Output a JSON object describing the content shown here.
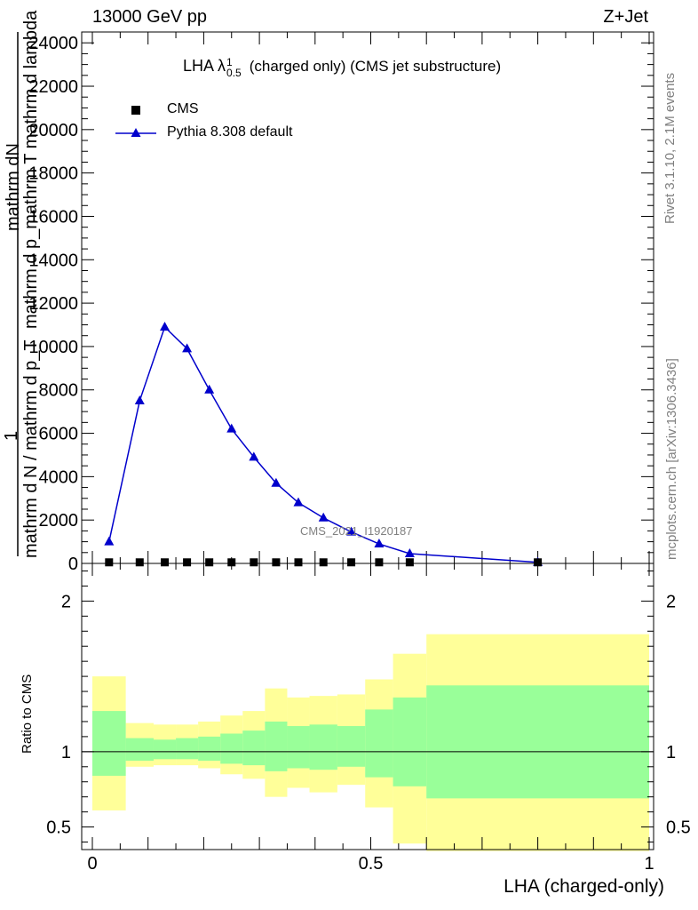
{
  "header": {
    "energy_label": "13000 GeV pp",
    "process_label": "Z+Jet",
    "plot_title": "LHA λ",
    "title_sup": "1",
    "title_sub": "0.5",
    "title_suffix": "(charged only) (CMS jet substructure)",
    "watermark": "CMS_2021_I1920187",
    "side_rivet": "Rivet 3.1.10,  2.1M events",
    "side_mcplots": "mcplots.cern.ch [arXiv:1306.3436]"
  },
  "axes": {
    "y_label_top": "mathrm dN",
    "y_label_mid": "mathrm d p_mathrm T mathrm d lambda",
    "y_label_one": "1",
    "y_label_bot": "mathrm d N / mathrm d p_T",
    "ratio_ylabel": "Ratio to CMS",
    "xlabel": "LHA (charged-only)"
  },
  "legend": {
    "data_label": "CMS",
    "mc_label": "Pythia 8.308 default"
  },
  "colors": {
    "mc_line": "#0000cc",
    "band_inner": "#99ff99",
    "band_outer": "#ffff99",
    "data_marker": "#000000"
  },
  "chart_data": [
    {
      "type": "line",
      "panel": "main",
      "xlim": [
        0,
        1
      ],
      "ylim": [
        0,
        24500
      ],
      "y_ticks": [
        {
          "v": 0,
          "label": "0"
        },
        {
          "v": 2000,
          "label": "2000"
        },
        {
          "v": 4000,
          "label": "4000"
        },
        {
          "v": 6000,
          "label": "6000"
        },
        {
          "v": 8000,
          "label": "8000"
        },
        {
          "v": 10000,
          "label": "10000"
        },
        {
          "v": 12000,
          "label": "12000"
        },
        {
          "v": 14000,
          "label": "14000"
        },
        {
          "v": 16000,
          "label": "16000"
        },
        {
          "v": 18000,
          "label": "18000"
        },
        {
          "v": 20000,
          "label": "20000"
        },
        {
          "v": 22000,
          "label": "22000"
        },
        {
          "v": 24000,
          "label": "24000"
        }
      ],
      "series": [
        {
          "name": "CMS",
          "marker": "square",
          "x": [
            0.03,
            0.085,
            0.13,
            0.17,
            0.21,
            0.25,
            0.29,
            0.33,
            0.37,
            0.415,
            0.465,
            0.515,
            0.57,
            0.8
          ],
          "y": [
            50,
            50,
            50,
            50,
            50,
            50,
            50,
            50,
            50,
            50,
            50,
            50,
            50,
            50
          ]
        },
        {
          "name": "Pythia 8.308 default",
          "marker": "triangle",
          "x": [
            0.03,
            0.085,
            0.13,
            0.17,
            0.21,
            0.25,
            0.29,
            0.33,
            0.37,
            0.415,
            0.465,
            0.515,
            0.57,
            0.8
          ],
          "y": [
            1000,
            7500,
            10900,
            9900,
            8000,
            6200,
            4900,
            3700,
            2800,
            2100,
            1450,
            900,
            450,
            50
          ]
        }
      ]
    },
    {
      "type": "area",
      "panel": "ratio",
      "xlim": [
        0,
        1
      ],
      "ylim": [
        0.35,
        2.25
      ],
      "x_ticks": [
        {
          "v": 0,
          "label": "0"
        },
        {
          "v": 0.5,
          "label": "0.5"
        },
        {
          "v": 1,
          "label": "1"
        }
      ],
      "y_ticks": [
        {
          "v": 0.5,
          "label": "0.5"
        },
        {
          "v": 1,
          "label": "1"
        },
        {
          "v": 2,
          "label": "2"
        }
      ],
      "reference_line": 1.0,
      "bins": [
        {
          "lo": 0.0,
          "hi": 0.06,
          "outer": [
            0.61,
            1.5
          ],
          "inner": [
            0.84,
            1.27
          ]
        },
        {
          "lo": 0.06,
          "hi": 0.11,
          "outer": [
            0.9,
            1.19
          ],
          "inner": [
            0.94,
            1.09
          ]
        },
        {
          "lo": 0.11,
          "hi": 0.15,
          "outer": [
            0.91,
            1.18
          ],
          "inner": [
            0.95,
            1.08
          ]
        },
        {
          "lo": 0.15,
          "hi": 0.19,
          "outer": [
            0.91,
            1.18
          ],
          "inner": [
            0.95,
            1.09
          ]
        },
        {
          "lo": 0.19,
          "hi": 0.23,
          "outer": [
            0.89,
            1.2
          ],
          "inner": [
            0.94,
            1.1
          ]
        },
        {
          "lo": 0.23,
          "hi": 0.27,
          "outer": [
            0.85,
            1.24
          ],
          "inner": [
            0.92,
            1.12
          ]
        },
        {
          "lo": 0.27,
          "hi": 0.31,
          "outer": [
            0.82,
            1.27
          ],
          "inner": [
            0.91,
            1.14
          ]
        },
        {
          "lo": 0.31,
          "hi": 0.35,
          "outer": [
            0.7,
            1.42
          ],
          "inner": [
            0.87,
            1.2
          ]
        },
        {
          "lo": 0.35,
          "hi": 0.39,
          "outer": [
            0.76,
            1.36
          ],
          "inner": [
            0.89,
            1.17
          ]
        },
        {
          "lo": 0.39,
          "hi": 0.44,
          "outer": [
            0.73,
            1.37
          ],
          "inner": [
            0.88,
            1.18
          ]
        },
        {
          "lo": 0.44,
          "hi": 0.49,
          "outer": [
            0.78,
            1.38
          ],
          "inner": [
            0.9,
            1.17
          ]
        },
        {
          "lo": 0.49,
          "hi": 0.54,
          "outer": [
            0.63,
            1.48
          ],
          "inner": [
            0.83,
            1.28
          ]
        },
        {
          "lo": 0.54,
          "hi": 0.6,
          "outer": [
            0.39,
            1.65
          ],
          "inner": [
            0.77,
            1.36
          ]
        },
        {
          "lo": 0.6,
          "hi": 1.0,
          "outer": [
            0.34,
            1.78
          ],
          "inner": [
            0.69,
            1.44
          ]
        }
      ]
    }
  ]
}
